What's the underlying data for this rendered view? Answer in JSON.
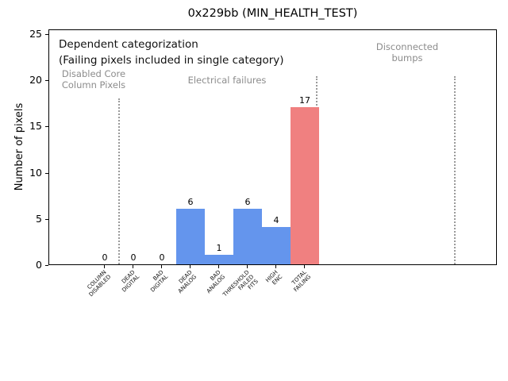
{
  "window": {
    "title": "0x229bb (MIN_HEALTH_TEST)"
  },
  "chart_data": {
    "type": "bar",
    "title": "0x229bb (MIN_HEALTH_TEST)",
    "xlabel": "",
    "ylabel": "Number of pixels",
    "ylim": [
      0,
      25
    ],
    "yticks": [
      0,
      5,
      10,
      15,
      20,
      25
    ],
    "grid": false,
    "legend": "none",
    "categories": [
      "COLUMN\nDISABLED",
      "DEAD\nDIGITAL",
      "BAD\nDIGITAL",
      "DEAD\nANALOG",
      "BAD\nANALOG",
      "THRESHOLD\nFAILED\nFITS",
      "HIGH\nENC",
      "TOTAL\nFAILING"
    ],
    "values": [
      0,
      0,
      0,
      6,
      1,
      6,
      4,
      17
    ],
    "bar_value_labels": [
      "0",
      "0",
      "0",
      "6",
      "1",
      "6",
      "4",
      "17"
    ],
    "bar_colors": [
      "#6495ED",
      "#6495ED",
      "#6495ED",
      "#6495ED",
      "#6495ED",
      "#6495ED",
      "#6495ED",
      "#F08080"
    ],
    "colors": {
      "default_bar": "#6495ED",
      "total_bar": "#F08080",
      "section_text": "#8c8c8c",
      "divider": "#9a9a9a"
    },
    "annotations": {
      "dependent_title": "Dependent categorization",
      "dependent_note": "(Failing pixels included in single category)",
      "section_disabled": "Disabled Core\nColumn Pixels",
      "section_electrical": "Electrical failures",
      "section_disconnected": "Disconnected\nbumps"
    },
    "sections": [
      {
        "label": "Disabled Core Column Pixels",
        "categories": [
          "COLUMN DISABLED"
        ]
      },
      {
        "label": "Electrical failures",
        "categories": [
          "DEAD DIGITAL",
          "BAD DIGITAL",
          "DEAD ANALOG",
          "BAD ANALOG",
          "THRESHOLD FAILED FITS",
          "HIGH ENC",
          "TOTAL FAILING"
        ]
      },
      {
        "label": "Disconnected bumps",
        "categories": []
      }
    ]
  }
}
